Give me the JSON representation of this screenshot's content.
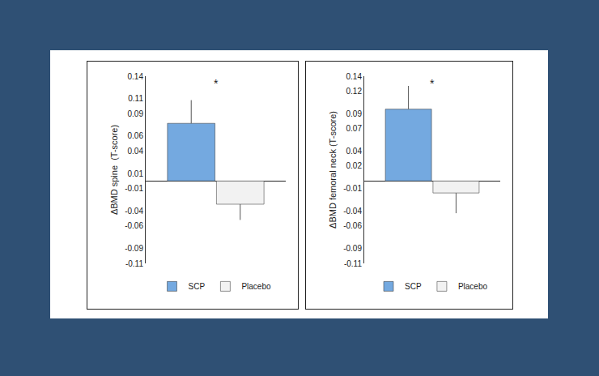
{
  "chart_data": [
    {
      "type": "bar",
      "ylabel": "ΔBMD spine  (T-score)",
      "categories": [
        null
      ],
      "series": [
        {
          "name": "SCP",
          "color": "#74a9e0",
          "values": [
            0.077
          ],
          "error": [
            0.031
          ]
        },
        {
          "name": "Placebo",
          "color": "#f2f2f2",
          "values": [
            -0.031
          ],
          "error": [
            0.021
          ]
        }
      ],
      "ylim": [
        -0.11,
        0.14
      ],
      "yticks": [
        0.14,
        0.11,
        0.09,
        0.06,
        0.04,
        0.01,
        -0.01,
        -0.04,
        -0.06,
        -0.09,
        -0.11
      ],
      "annotations": [
        {
          "text": "*",
          "y": 0.13
        }
      ],
      "legend": "bottom",
      "tick_labels": "y"
    },
    {
      "type": "bar",
      "ylabel": "ΔBMD femoral neck (T-score)",
      "categories": [
        null
      ],
      "series": [
        {
          "name": "SCP",
          "color": "#74a9e0",
          "values": [
            0.096
          ],
          "error": [
            0.031
          ]
        },
        {
          "name": "Placebo",
          "color": "#f2f2f2",
          "values": [
            -0.016
          ],
          "error": [
            0.027
          ]
        }
      ],
      "ylim": [
        -0.11,
        0.14
      ],
      "yticks": [
        0.14,
        0.12,
        0.09,
        0.07,
        0.04,
        0.02,
        -0.01,
        -0.04,
        -0.06,
        -0.09,
        -0.11
      ],
      "annotations": [
        {
          "text": "*",
          "y": 0.13
        }
      ],
      "legend": "bottom",
      "tick_labels": "y"
    }
  ]
}
